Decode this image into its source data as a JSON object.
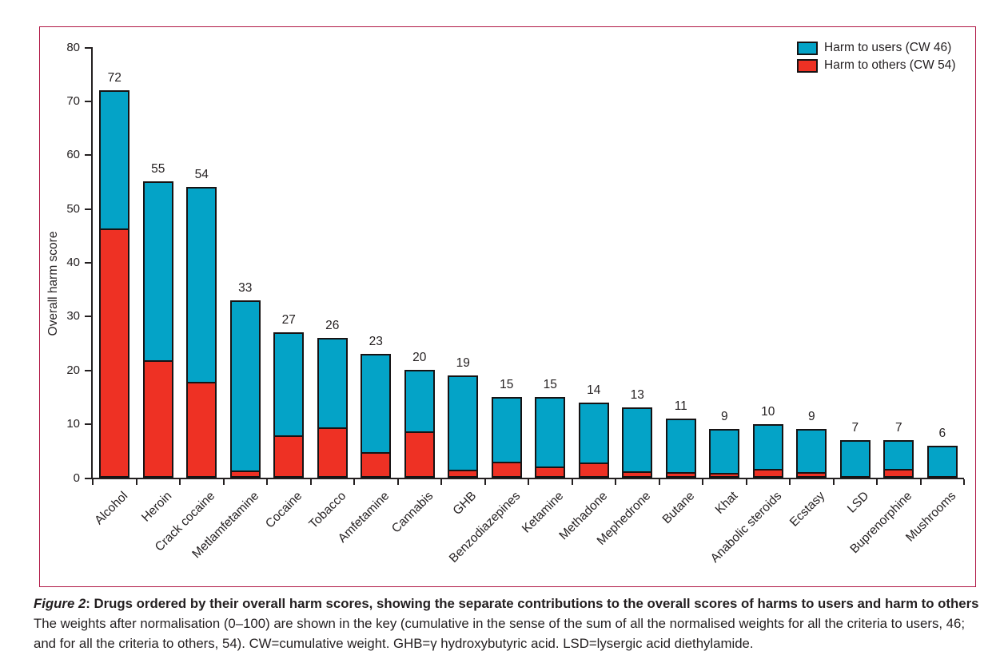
{
  "figure": {
    "caption_figure_label": "Figure 2",
    "caption_title": ": Drugs ordered by their overall harm scores, showing the separate contributions to the overall scores of harms to users and harm to others",
    "caption_body": "The weights after normalisation (0–100) are shown in the key (cumulative in the sense of the sum of all the normalised weights for all the criteria to users, 46; and for all the criteria to others, 54). CW=cumulative weight. GHB=γ hydroxybutyric acid. LSD=lysergic acid diethylamide.",
    "frame_color": "#b01745"
  },
  "chart_data": {
    "type": "bar",
    "stacked": true,
    "ylabel": "Overall harm score",
    "xlabel": "",
    "ylim": [
      0,
      80
    ],
    "yticks": [
      0,
      10,
      20,
      30,
      40,
      50,
      60,
      70,
      80
    ],
    "grid": false,
    "legend_position": "top-right",
    "legend": [
      {
        "label": "Harm to users (CW 46)",
        "color": "#04a3c7"
      },
      {
        "label": "Harm to others (CW 54)",
        "color": "#ee3124"
      }
    ],
    "categories": [
      "Alcohol",
      "Heroin",
      "Crack cocaine",
      "Metlamfetamine",
      "Cocaine",
      "Tobacco",
      "Amfetamine",
      "Cannabis",
      "GHB",
      "Benzodiazepines",
      "Ketamine",
      "Methadone",
      "Mephedrone",
      "Butane",
      "Khat",
      "Anabolic steroids",
      "Ecstasy",
      "LSD",
      "Buprenorphine",
      "Mushrooms"
    ],
    "totals": [
      72,
      55,
      54,
      33,
      27,
      26,
      23,
      20,
      19,
      15,
      15,
      14,
      13,
      11,
      9,
      10,
      9,
      7,
      7,
      6
    ],
    "total_labels": [
      "72",
      "55",
      "54",
      "33",
      "27",
      "26",
      "23",
      "20",
      "19",
      "15",
      "15",
      "14",
      "13",
      "11",
      "9",
      "10",
      "9",
      "7",
      "7",
      "6"
    ],
    "series": [
      {
        "name": "Harm to users (CW 46)",
        "color": "#04a3c7",
        "values": [
          26,
          33.5,
          36.5,
          32,
          19.5,
          17,
          18.6,
          11.7,
          17.8,
          12.3,
          13.2,
          11.5,
          12.1,
          10.3,
          8.4,
          8.6,
          8.3,
          6.7,
          5.7,
          5.8
        ]
      },
      {
        "name": "Harm to others (CW 54)",
        "color": "#ee3124",
        "values": [
          46,
          21.5,
          17.5,
          1,
          7.5,
          9,
          4.4,
          8.3,
          1.2,
          2.7,
          1.8,
          2.5,
          0.9,
          0.7,
          0.6,
          1.4,
          0.7,
          0.3,
          1.3,
          0.2
        ]
      }
    ]
  }
}
